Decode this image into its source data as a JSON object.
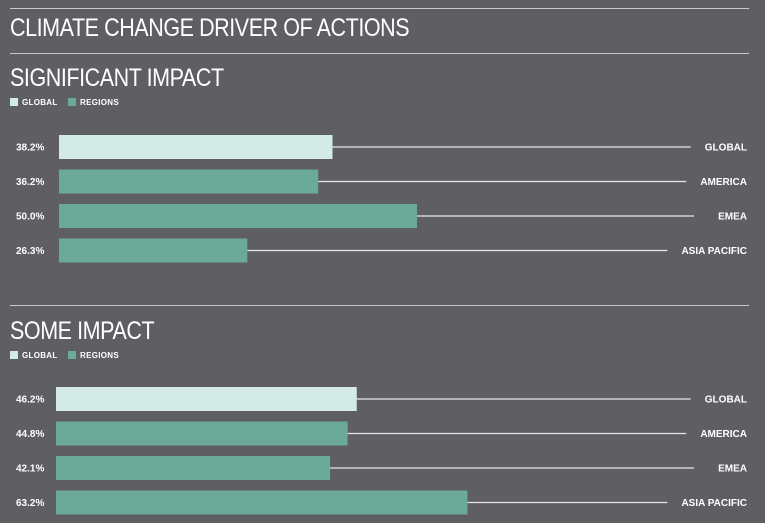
{
  "title": "CLIMATE CHANGE DRIVER OF ACTIONS",
  "colors": {
    "background": "#5f5e63",
    "global": "#d3eae5",
    "regions": "#6aaa96",
    "line": "#e8e8e8"
  },
  "legend": {
    "global_label": "GLOBAL",
    "regions_label": "REGIONS"
  },
  "chart_data": [
    {
      "type": "bar",
      "title": "SIGNIFICANT IMPACT",
      "categories": [
        "GLOBAL",
        "AMERICA",
        "EMEA",
        "ASIA PACIFIC"
      ],
      "values": [
        38.2,
        36.2,
        50.0,
        26.3
      ],
      "value_labels": [
        "38.2%",
        "36.2%",
        "50.0%",
        "26.3%"
      ],
      "series": [
        {
          "name": "GLOBAL",
          "categories": [
            "GLOBAL"
          ]
        },
        {
          "name": "REGIONS",
          "categories": [
            "AMERICA",
            "EMEA",
            "ASIA PACIFIC"
          ]
        }
      ],
      "orientation": "horizontal",
      "xlim": [
        0,
        100
      ],
      "grid": false,
      "legend": "top-left"
    },
    {
      "type": "bar",
      "title": "SOME IMPACT",
      "categories": [
        "GLOBAL",
        "AMERICA",
        "EMEA",
        "ASIA PACIFIC"
      ],
      "values": [
        46.2,
        44.8,
        42.1,
        63.2
      ],
      "value_labels": [
        "46.2%",
        "44.8%",
        "42.1%",
        "63.2%"
      ],
      "series": [
        {
          "name": "GLOBAL",
          "categories": [
            "GLOBAL"
          ]
        },
        {
          "name": "REGIONS",
          "categories": [
            "AMERICA",
            "EMEA",
            "ASIA PACIFIC"
          ]
        }
      ],
      "orientation": "horizontal",
      "xlim": [
        0,
        100
      ],
      "grid": false,
      "legend": "top-left"
    }
  ]
}
